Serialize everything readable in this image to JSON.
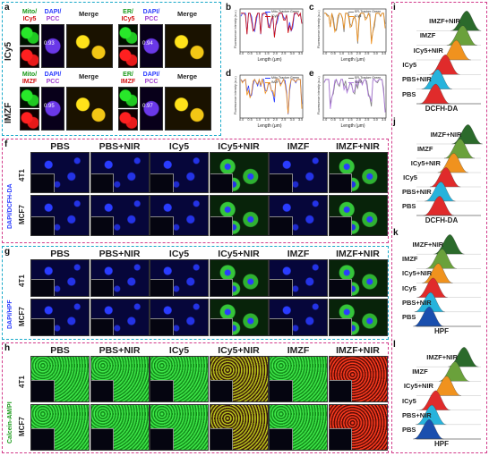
{
  "panel_labels": [
    "a",
    "b",
    "c",
    "d",
    "e",
    "f",
    "g",
    "h",
    "i",
    "j",
    "k",
    "l"
  ],
  "panel_a": {
    "rows": [
      {
        "name": "ICy5",
        "quad": [
          {
            "label1": "Mito/",
            "label2": "ICy5",
            "coef": "0.93"
          },
          {
            "label1": "ER/",
            "label2": "ICy5",
            "coef": "0.94"
          }
        ]
      },
      {
        "name": "IMZF",
        "quad": [
          {
            "label1": "Mito/",
            "label2": "IMZF",
            "coef": "0.95"
          },
          {
            "label1": "ER/",
            "label2": "IMZF",
            "coef": "0.97"
          }
        ]
      }
    ],
    "dapi_label1": "DAPI/",
    "dapi_label2": "PCC",
    "merge_label": "Merge"
  },
  "line_plots": [
    {
      "id": "b",
      "legend": [
        "Mito-Tracker Green",
        "ICy5"
      ],
      "ylabel": "Fluorescence intensity (a.u.)",
      "xlabel": "Length (μm)",
      "xticks": [
        "0.0",
        "0.5",
        "1.0",
        "1.5",
        "2.0",
        "2.5",
        "3.0",
        "3.5"
      ],
      "colors": [
        "#2a3cff",
        "#d01010"
      ]
    },
    {
      "id": "c",
      "legend": [
        "ER-Tracker Green",
        "ICy5"
      ],
      "ylabel": "Fluorescence intensity (a.u.)",
      "xlabel": "Length (μm)",
      "xticks": [
        "0.0",
        "0.5",
        "1.0",
        "1.5",
        "2.0",
        "2.5",
        "3.0",
        "3.5"
      ],
      "colors": [
        "#7a7a7a",
        "#f0901a"
      ]
    },
    {
      "id": "d",
      "legend": [
        "Mito-Tracker Green",
        "IMZF"
      ],
      "ylabel": "Fluorescence intensity (a.u.)",
      "xlabel": "Length (μm)",
      "xticks": [
        "0.0",
        "0.5",
        "1.0",
        "1.5",
        "2.0",
        "2.5",
        "3.0",
        "3.5"
      ],
      "colors": [
        "#2a3cff",
        "#f0901a"
      ]
    },
    {
      "id": "e",
      "legend": [
        "ER-Tracker Green",
        "IMZF"
      ],
      "ylabel": "Fluorescence intensity (a.u.)",
      "xlabel": "Length (μm)",
      "xticks": [
        "0.0",
        "0.5",
        "1.0",
        "1.5",
        "2.0",
        "2.5",
        "3.0",
        "3.5"
      ],
      "colors": [
        "#7a7a7a",
        "#b07ae0"
      ]
    }
  ],
  "grid_columns": [
    "PBS",
    "PBS+NIR",
    "ICy5",
    "ICy5+NIR",
    "IMZF",
    "IMZF+NIR"
  ],
  "grid_rows": [
    "4T1",
    "MCF7"
  ],
  "panel_f": {
    "stain": "DAPI/DCFH-DA",
    "pattern": [
      "blue",
      "blue",
      "blue",
      "green",
      "blue",
      "green"
    ]
  },
  "panel_g": {
    "stain": "DAPI/HPF",
    "pattern": [
      "blue",
      "blue",
      "blue",
      "green",
      "blue",
      "green"
    ]
  },
  "panel_h": {
    "stain": "Calcein-AM/PI",
    "pattern": [
      "live",
      "live",
      "live",
      "mixed",
      "live",
      "dead"
    ]
  },
  "histograms": [
    {
      "id": "i",
      "xlabel": "DCFH-DA",
      "labels": [
        "IMZF+NIR",
        "IMZF",
        "ICy5+NIR",
        "ICy5",
        "PBS+NIR",
        "PBS"
      ],
      "colors": [
        "#2b6a2b",
        "#6aa13b",
        "#f0921e",
        "#e02b2b",
        "#27b3dc",
        "#e02b2b"
      ]
    },
    {
      "id": "j",
      "xlabel": "DCFH-DA",
      "labels": [
        "IMZF+NIR",
        "IMZF",
        "ICy5+NIR",
        "ICy5",
        "PBS+NIR",
        "PBS"
      ],
      "colors": [
        "#2b6a2b",
        "#6aa13b",
        "#f0921e",
        "#e02b2b",
        "#27b3dc",
        "#e02b2b"
      ]
    },
    {
      "id": "k",
      "xlabel": "HPF",
      "labels": [
        "IMZF+NIR",
        "IMZF",
        "ICy5+NIR",
        "ICy5",
        "PBS+NIR",
        "PBS"
      ],
      "colors": [
        "#2b6a2b",
        "#6aa13b",
        "#f0921e",
        "#e02b2b",
        "#27b3dc",
        "#1a4fae"
      ]
    },
    {
      "id": "l",
      "xlabel": "HPF",
      "labels": [
        "IMZF+NIR",
        "IMZF",
        "ICy5+NIR",
        "ICy5",
        "PBS+NIR",
        "PBS"
      ],
      "colors": [
        "#2b6a2b",
        "#6aa13b",
        "#f0921e",
        "#e02b2b",
        "#27b3dc",
        "#1a4fae"
      ]
    }
  ]
}
